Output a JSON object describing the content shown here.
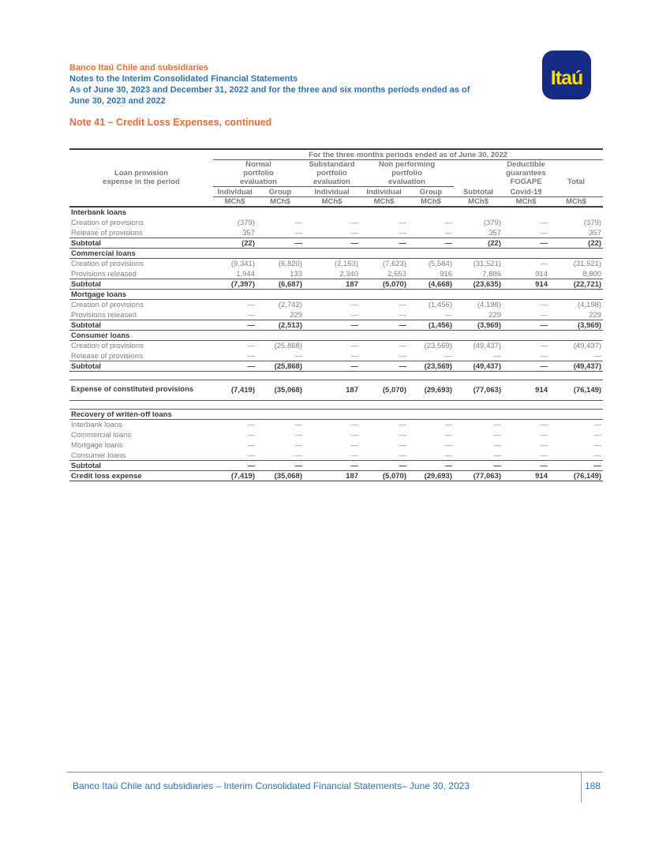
{
  "colors": {
    "accent_orange": "#ED6C39",
    "accent_blue": "#2E74B5",
    "logo_bg": "#172B85",
    "logo_yellow": "#FFDD00",
    "table_text": "#7F7F7F",
    "table_bold": "#3D3D3D",
    "line_thin": "#5A5A5A",
    "line_dark": "#3F3F3F"
  },
  "header": {
    "company": "Banco Itaú Chile and subsidiaries",
    "line1": "Notes to the Interim Consolidated Financial Statements",
    "line2": "As of June 30, 2023 and December 31, 2022 and for the three and six months periods ended as of\nJune 30, 2023 and 2022",
    "logo_text": "Itaú"
  },
  "note_title": "Note 41 – Credit Loss Expenses, continued",
  "table": {
    "period_header": "For the three months periods ended as of June 30, 2022",
    "row_label_header": "Loan provision\nexpense in the period",
    "column_groups": [
      {
        "label": "Normal\nportfolio\nevaluation",
        "span": 2,
        "underline": true
      },
      {
        "label": "Substandard\nportfolio\nevaluation",
        "span": 1,
        "underline": true
      },
      {
        "label": "Non performing\nportfolio\nevaluation",
        "span": 2,
        "underline": true
      },
      {
        "label": "",
        "span": 1,
        "underline": false
      },
      {
        "label": "Deductible\nguarantees\nFOGAPE",
        "span": 1,
        "underline": false
      },
      {
        "label": "Total",
        "span": 1,
        "underline": false
      }
    ],
    "subheaders": [
      "Individual",
      "Group",
      "Individual",
      "Individual",
      "Group",
      "Subtotal",
      "Covid-19",
      ""
    ],
    "units": [
      "MCh$",
      "MCh$",
      "MCh$",
      "MCh$",
      "MCh$",
      "MCh$",
      "MCh$",
      "MCh$"
    ],
    "rows": [
      {
        "type": "section",
        "label": "Interbank loans"
      },
      {
        "type": "data",
        "label": "Creation of provisions",
        "values": [
          "(379)",
          "—",
          "—",
          "—",
          "—",
          "(379)",
          "—",
          "(379)"
        ]
      },
      {
        "type": "data",
        "bb": true,
        "label": "Release of provisions",
        "values": [
          "357",
          "—",
          "—",
          "—",
          "—",
          "357",
          "—",
          "357"
        ]
      },
      {
        "type": "subtotal",
        "bb": true,
        "label": "Subtotal",
        "values": [
          "(22)",
          "—",
          "—",
          "—",
          "—",
          "(22)",
          "—",
          "(22)"
        ]
      },
      {
        "type": "section",
        "bb": true,
        "label": "Commercial loans"
      },
      {
        "type": "data",
        "label": "Creation of provisions",
        "values": [
          "(9,341)",
          "(6,820)",
          "(2,153)",
          "(7,623)",
          "(5,584)",
          "(31,521)",
          "—",
          "(31,521)"
        ]
      },
      {
        "type": "data",
        "bb": true,
        "label": "Provisions released",
        "values": [
          "1,944",
          "133",
          "2,340",
          "2,553",
          "916",
          "7,886",
          "914",
          "8,800"
        ]
      },
      {
        "type": "subtotal",
        "bb": true,
        "label": "Subtotal",
        "values": [
          "(7,397)",
          "(6,687)",
          "187",
          "(5,070)",
          "(4,668)",
          "(23,635)",
          "914",
          "(22,721)"
        ]
      },
      {
        "type": "section",
        "bb": true,
        "label": "Mortgage loans"
      },
      {
        "type": "data",
        "label": "Creation of provisions",
        "values": [
          "—",
          "(2,742)",
          "—",
          "—",
          "(1,456)",
          "(4,198)",
          "—",
          "(4,198)"
        ]
      },
      {
        "type": "data",
        "bb": true,
        "label": "Provisions released",
        "values": [
          "—",
          "229",
          "—",
          "—",
          "—",
          "229",
          "—",
          "229"
        ]
      },
      {
        "type": "subtotal",
        "bb": true,
        "label": "Subtotal",
        "values": [
          "—",
          "(2,513)",
          "—",
          "—",
          "(1,456)",
          "(3,969)",
          "—",
          "(3,969)"
        ]
      },
      {
        "type": "section",
        "bb": true,
        "label": "Consumer loans"
      },
      {
        "type": "data",
        "label": "Creation of provisions",
        "values": [
          "—",
          "(25,868)",
          "—",
          "—",
          "(23,569)",
          "(49,437)",
          "—",
          "(49,437)"
        ]
      },
      {
        "type": "data",
        "bb": true,
        "label": "Release of provisions",
        "values": [
          "—",
          "—",
          "—",
          "—",
          "—",
          "—",
          "—",
          "—"
        ]
      },
      {
        "type": "subtotal",
        "bb": true,
        "label": "Subtotal",
        "values": [
          "—",
          "(25,868)",
          "—",
          "—",
          "(23,569)",
          "(49,437)",
          "—",
          "(49,437)"
        ]
      },
      {
        "type": "spacer"
      },
      {
        "type": "total",
        "bt": true,
        "bb": true,
        "label": "Expense of constituted provisions",
        "values": [
          "(7,419)",
          "(35,068)",
          "187",
          "(5,070)",
          "(29,693)",
          "(77,063)",
          "914",
          "(76,149)"
        ]
      },
      {
        "type": "spacer"
      },
      {
        "type": "section",
        "bt": true,
        "bb": true,
        "label": "Recovery of writen-off loans"
      },
      {
        "type": "data",
        "label": "Interbank loans",
        "values": [
          "—",
          "—",
          "—",
          "—",
          "—",
          "—",
          "—",
          "—"
        ]
      },
      {
        "type": "data",
        "label": "Commercial loans",
        "values": [
          "—",
          "—",
          "—",
          "—",
          "—",
          "—",
          "—",
          "—"
        ]
      },
      {
        "type": "data",
        "label": "Mortgage loans",
        "values": [
          "—",
          "—",
          "—",
          "—",
          "—",
          "—",
          "—",
          "—"
        ]
      },
      {
        "type": "data",
        "bb": true,
        "label": "Consumer loans",
        "values": [
          "—",
          "—",
          "—",
          "—",
          "—",
          "—",
          "—",
          "—"
        ]
      },
      {
        "type": "subtotal",
        "bb": true,
        "label": "Subtotal",
        "values": [
          "—",
          "—",
          "—",
          "—",
          "—",
          "—",
          "—",
          "—"
        ]
      },
      {
        "type": "subtotal",
        "strong": true,
        "label": "Credit loss expense",
        "values": [
          "(7,419)",
          "(35,068)",
          "187",
          "(5,070)",
          "(29,693)",
          "(77,063)",
          "914",
          "(76,149)"
        ]
      }
    ]
  },
  "footer": {
    "text": "Banco Itaú Chile and subsidiaries – Interim Consolidated Financial Statements– June 30, 2023",
    "page_number": "188"
  }
}
